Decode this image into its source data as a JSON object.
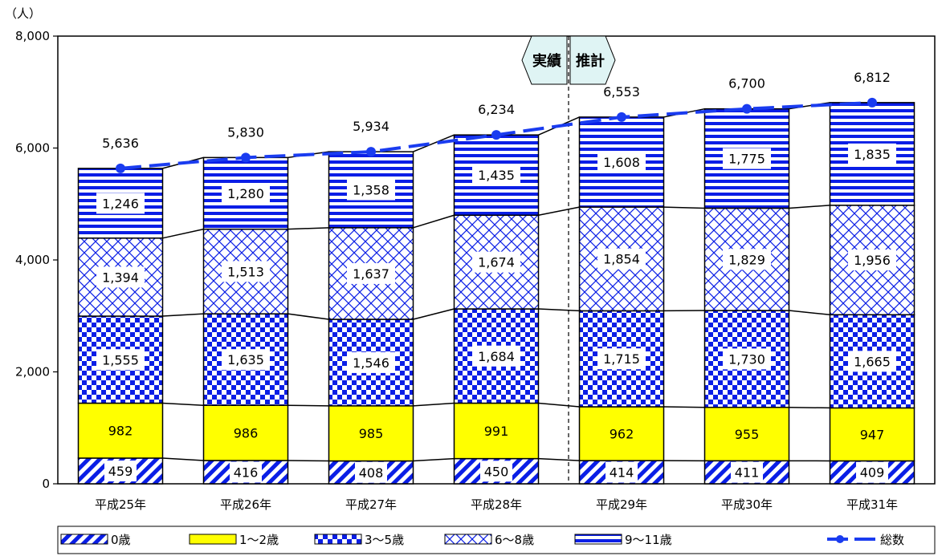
{
  "chart_data": {
    "type": "bar",
    "stacked": true,
    "unit_label": "（人）",
    "categories": [
      "平成25年",
      "平成26年",
      "平成27年",
      "平成28年",
      "平成29年",
      "平成30年",
      "平成31年"
    ],
    "ylim": [
      0,
      8000
    ],
    "yticks": [
      "0",
      "2,000",
      "4,000",
      "6,000",
      "8,000"
    ],
    "ytick_values": [
      0,
      2000,
      4000,
      6000,
      8000
    ],
    "series": [
      {
        "name": "0歳",
        "pattern": "diag",
        "values": [
          459,
          416,
          408,
          450,
          414,
          411,
          409
        ],
        "labels": [
          "459",
          "416",
          "408",
          "450",
          "414",
          "411",
          "409"
        ]
      },
      {
        "name": "1～2歳",
        "pattern": "yellow",
        "values": [
          982,
          986,
          985,
          991,
          962,
          955,
          947
        ],
        "labels": [
          "982",
          "986",
          "985",
          "991",
          "962",
          "955",
          "947"
        ]
      },
      {
        "name": "3～5歳",
        "pattern": "check",
        "values": [
          1555,
          1635,
          1546,
          1684,
          1715,
          1730,
          1665
        ],
        "labels": [
          "1,555",
          "1,635",
          "1,546",
          "1,684",
          "1,715",
          "1,730",
          "1,665"
        ]
      },
      {
        "name": "6～8歳",
        "pattern": "cross",
        "values": [
          1394,
          1513,
          1637,
          1674,
          1854,
          1829,
          1956
        ],
        "labels": [
          "1,394",
          "1,513",
          "1,637",
          "1,674",
          "1,854",
          "1,829",
          "1,956"
        ]
      },
      {
        "name": "9～11歳",
        "pattern": "hstripe",
        "values": [
          1246,
          1280,
          1358,
          1435,
          1608,
          1775,
          1835
        ],
        "labels": [
          "1,246",
          "1,280",
          "1,358",
          "1,435",
          "1,608",
          "1,775",
          "1,835"
        ]
      }
    ],
    "total": {
      "name": "総数",
      "values": [
        5636,
        5830,
        5934,
        6234,
        6553,
        6700,
        6812
      ],
      "labels": [
        "5,636",
        "5,830",
        "5,934",
        "6,234",
        "6,553",
        "6,700",
        "6,812"
      ]
    },
    "annotations": {
      "actual": "実績",
      "forecast": "推計"
    },
    "grid": false,
    "legend_position": "bottom",
    "colors": {
      "blue": "#0a1ee6",
      "yellow": "#ffff00",
      "line": "#1a3cf0",
      "axis": "#000000"
    }
  }
}
